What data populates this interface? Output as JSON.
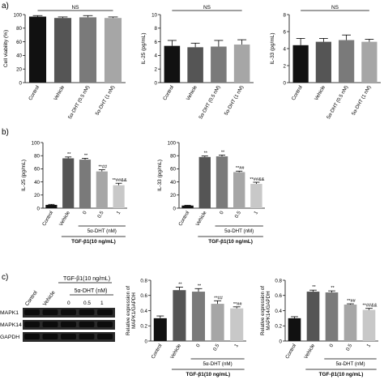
{
  "panels": {
    "a": "a)",
    "b": "b)",
    "c": "c)"
  },
  "colors": {
    "black": "#111111",
    "dark": "#555555",
    "mid": "#7a7a7a",
    "light": "#a6a6a6",
    "lighter": "#c8c8c8"
  },
  "blot": {
    "treatment_label": "TGF-β1(10 ng/mL)",
    "dht_label": "5α-DHT (nM)",
    "columns": [
      "Control",
      "Vehicle",
      "0",
      "0.5",
      "1"
    ],
    "rows": [
      "MAPK1",
      "MAPK14",
      "GAPDH"
    ]
  },
  "chart_data": [
    {
      "id": "a1",
      "type": "bar",
      "categories": [
        "Control",
        "Vehicle",
        "5α-DHT (0.5 nM)",
        "5α-DHT (1 nM)"
      ],
      "values": [
        97,
        95,
        96,
        95
      ],
      "errors": [
        1.5,
        1.5,
        2.5,
        1.5
      ],
      "ylabel": "Cell viability (%)",
      "ylim": [
        0,
        100
      ],
      "yticks": [
        0,
        20,
        40,
        60,
        80,
        100
      ],
      "sig": [
        "",
        "",
        "",
        ""
      ],
      "bracket": "NS",
      "xgroup": null
    },
    {
      "id": "a2",
      "type": "bar",
      "categories": [
        "Control",
        "Vehicle",
        "5α-DHT (0.5 nM)",
        "5α-DHT (1 nM)"
      ],
      "values": [
        5.4,
        5.2,
        5.3,
        5.6
      ],
      "errors": [
        0.8,
        0.6,
        0.9,
        0.7
      ],
      "ylabel": "IL-25 (pg/mL)",
      "ylim": [
        0,
        10
      ],
      "yticks": [
        0,
        2,
        4,
        6,
        8,
        10
      ],
      "sig": [
        "",
        "",
        "",
        ""
      ],
      "bracket": "NS",
      "xgroup": null
    },
    {
      "id": "a3",
      "type": "bar",
      "categories": [
        "Control",
        "Vehicle",
        "5α-DHT (0.5 nM)",
        "5α-DHT (1 nM)"
      ],
      "values": [
        4.4,
        4.8,
        5.0,
        4.8
      ],
      "errors": [
        0.8,
        0.4,
        0.6,
        0.3
      ],
      "ylabel": "IL-33 (pg/mL)",
      "ylim": [
        0,
        8
      ],
      "yticks": [
        0,
        2,
        4,
        6,
        8
      ],
      "sig": [
        "",
        "",
        "",
        ""
      ],
      "bracket": "NS",
      "xgroup": null
    },
    {
      "id": "b1",
      "type": "bar",
      "categories": [
        "Control",
        "Vehicle",
        "0",
        "0.5",
        "1"
      ],
      "values": [
        5,
        76,
        74,
        56,
        35
      ],
      "errors": [
        0.8,
        2,
        2,
        2.5,
        3
      ],
      "ylabel": "IL-25 (pg/mL)",
      "ylim": [
        0,
        100
      ],
      "yticks": [
        0,
        20,
        40,
        60,
        80,
        100
      ],
      "sig": [
        "",
        "**",
        "**",
        "**##",
        "**##&&"
      ],
      "bracket": null,
      "xgroup": {
        "sub": "5α-DHT (nM)",
        "main": "TGF-β1(10 ng/mL)"
      }
    },
    {
      "id": "b2",
      "type": "bar",
      "categories": [
        "Control",
        "Vehicle",
        "0",
        "0.5",
        "1"
      ],
      "values": [
        4,
        78,
        79,
        55,
        37
      ],
      "errors": [
        0.5,
        1.5,
        2,
        1.5,
        2.5
      ],
      "ylabel": "IL-33 (pg/mL)",
      "ylim": [
        0,
        100
      ],
      "yticks": [
        0,
        20,
        40,
        60,
        80,
        100
      ],
      "sig": [
        "",
        "**",
        "**",
        "**##",
        "**##&&"
      ],
      "bracket": null,
      "xgroup": {
        "sub": "5α-DHT (nM)",
        "main": "TGF-β1(10 ng/mL)"
      }
    },
    {
      "id": "c1",
      "type": "bar",
      "categories": [
        "Control",
        "Vehicle",
        "0",
        "0.5",
        "1"
      ],
      "values": [
        0.3,
        0.67,
        0.65,
        0.49,
        0.43
      ],
      "errors": [
        0.03,
        0.04,
        0.04,
        0.04,
        0.02
      ],
      "ylabel": "Relative expression of MAPK1/GAPDH",
      "ylim": [
        0,
        0.8
      ],
      "yticks": [
        0,
        0.2,
        0.4,
        0.6,
        0.8
      ],
      "sig": [
        "",
        "**",
        "**",
        "**##",
        "**##"
      ],
      "bracket": null,
      "xgroup": {
        "sub": "5α-DHT (nM)",
        "main": "TGF-β1(10 ng/mL)"
      }
    },
    {
      "id": "c2",
      "type": "bar",
      "categories": [
        "Control",
        "Vehicle",
        "0",
        "0.5",
        "1"
      ],
      "values": [
        0.3,
        0.65,
        0.64,
        0.48,
        0.41
      ],
      "errors": [
        0.02,
        0.02,
        0.02,
        0.01,
        0.02
      ],
      "ylabel": "Relative expression of MAPK14/GAPDH",
      "ylim": [
        0,
        0.8
      ],
      "yticks": [
        0,
        0.2,
        0.4,
        0.6,
        0.8
      ],
      "sig": [
        "",
        "**",
        "**",
        "**##",
        "**##&&"
      ],
      "bracket": null,
      "xgroup": {
        "sub": "5α-DHT (nM)",
        "main": "TGF-β1(10 ng/mL)"
      }
    }
  ]
}
